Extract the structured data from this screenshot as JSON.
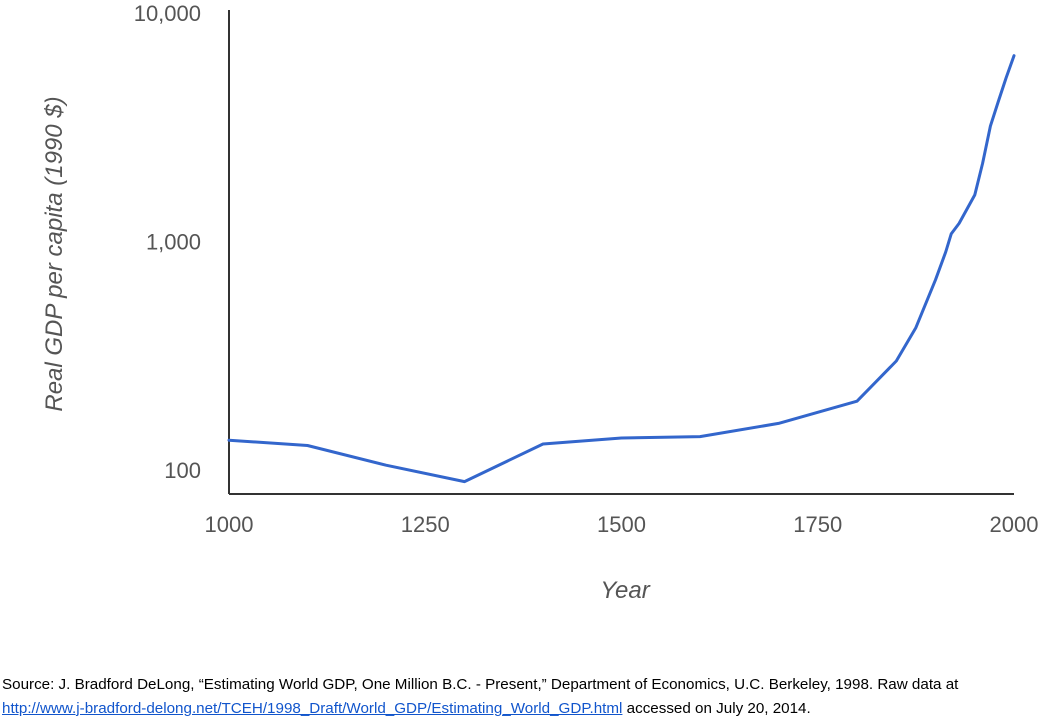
{
  "chart_data": {
    "type": "line",
    "xlabel": "Year",
    "ylabel": "Real GDP per capita (1990 $)",
    "x_ticks": [
      1000,
      1250,
      1500,
      1750,
      2000
    ],
    "x_tick_labels": [
      "1000",
      "1250",
      "1500",
      "1750",
      "2000"
    ],
    "y_ticks": [
      100,
      1000,
      10000
    ],
    "y_tick_labels": [
      "100",
      "1,000",
      "10,000"
    ],
    "xlim": [
      1000,
      2000
    ],
    "ylim": [
      80,
      10000
    ],
    "y_scale": "log",
    "grid": false,
    "legend": "none",
    "series": [
      {
        "color": "#3366cc",
        "points": [
          [
            1000,
            135
          ],
          [
            1100,
            128
          ],
          [
            1200,
            105
          ],
          [
            1300,
            89
          ],
          [
            1400,
            130
          ],
          [
            1500,
            138
          ],
          [
            1600,
            140
          ],
          [
            1700,
            160
          ],
          [
            1800,
            200
          ],
          [
            1850,
            300
          ],
          [
            1875,
            420
          ],
          [
            1900,
            680
          ],
          [
            1913,
            900
          ],
          [
            1920,
            1080
          ],
          [
            1930,
            1200
          ],
          [
            1950,
            1600
          ],
          [
            1960,
            2200
          ],
          [
            1970,
            3200
          ],
          [
            1980,
            4100
          ],
          [
            1990,
            5200
          ],
          [
            2000,
            6500
          ]
        ]
      }
    ]
  },
  "source": {
    "text_before": "Source: J. Bradford DeLong, “Estimating World GDP, One Million B.C. - Present,” Department of Economics, U.C. Berkeley, 1998. Raw data at",
    "link": "http://www.j-bradford-delong.net/TCEH/1998_Draft/World_GDP/Estimating_World_GDP.html",
    "text_after": " accessed on July 20, 2014."
  }
}
